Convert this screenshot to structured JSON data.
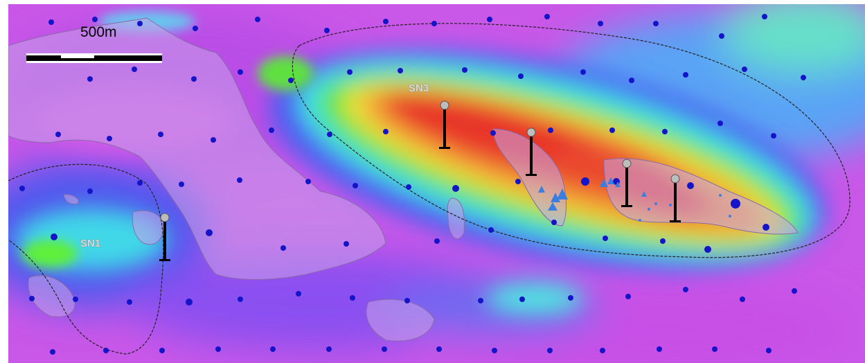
{
  "map": {
    "scale_bar": {
      "label": "500m"
    },
    "zones": [
      {
        "id": "SN1",
        "label": "SN1"
      },
      {
        "id": "SN3",
        "label": "SN3"
      }
    ],
    "legend_colors": {
      "low": "#cc44ee",
      "mid_low": "#4a55f0",
      "mid": "#3ff0e6",
      "mid_high": "#5ee83a",
      "high": "#f0e640",
      "peak": "#e8362a"
    },
    "sample_point_color": "#1414c8",
    "outcrop_color": "#c8a0e6",
    "drillhole_color": "#000000",
    "anomaly_marker_color": "#3a7fe0"
  }
}
